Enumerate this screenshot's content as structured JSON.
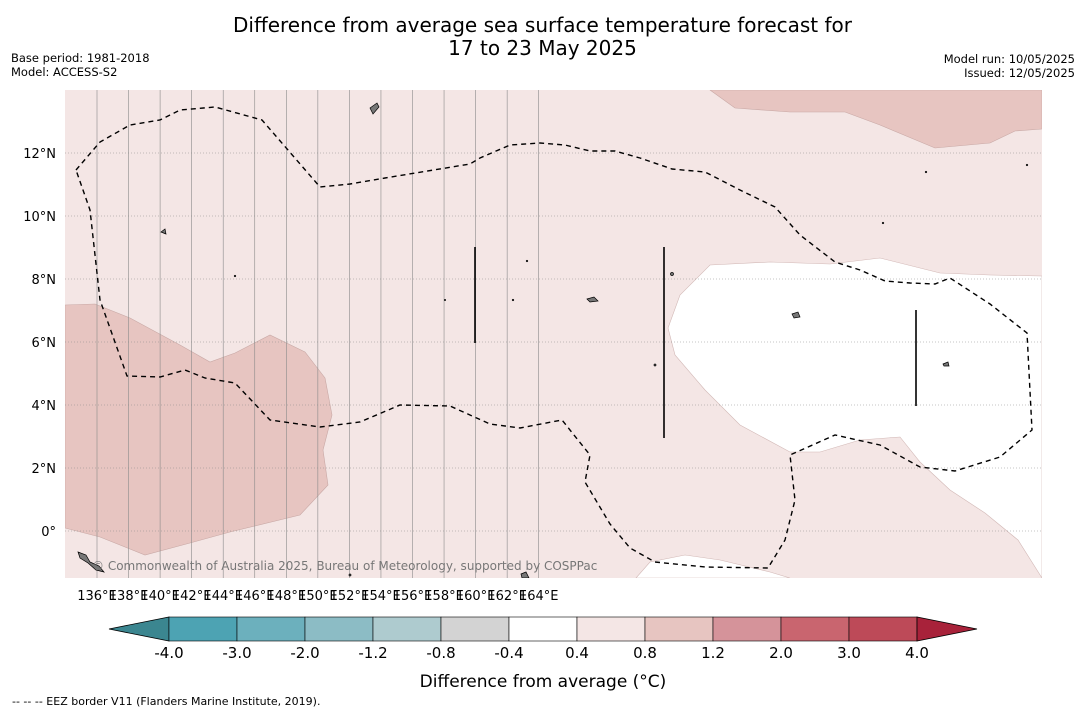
{
  "title_line1": "Difference from average sea surface temperature forecast for",
  "title_line2": "17 to 23 May 2025",
  "base_period": "Base period: 1981-2018",
  "model": "Model: ACCESS-S2",
  "model_run": "Model run: 10/05/2025",
  "issued": "Issued: 12/05/2025",
  "copyright": "© Commonwealth of Australia 2025, Bureau of Meteorology, supported by COSPPac",
  "x_ticks": [
    "136°E",
    "138°E",
    "140°E",
    "142°E",
    "144°E",
    "146°E",
    "148°E",
    "150°E",
    "152°E",
    "154°E",
    "156°E",
    "158°E",
    "160°E",
    "162°E",
    "164°E"
  ],
  "y_ticks": [
    "12°N",
    "10°N",
    "8°N",
    "6°N",
    "4°N",
    "2°N",
    "0°"
  ],
  "colorbar": {
    "label": "Difference from average (°C)",
    "ticks": [
      "-4.0",
      "-3.0",
      "-2.0",
      "-1.2",
      "-0.8",
      "-0.4",
      "0.4",
      "0.8",
      "1.2",
      "2.0",
      "3.0",
      "4.0"
    ],
    "colors": [
      "#4da3b3",
      "#6cb0bd",
      "#8cbcc5",
      "#aecbcf",
      "#d3d3d3",
      "#ffffff",
      "#f4e6e5",
      "#e7c5c1",
      "#d5939a",
      "#c9656f",
      "#bd4a58"
    ],
    "under_color": "#3b8690",
    "over_color": "#a8223a"
  },
  "footnote": "--  --  -- EEZ border V11 (Flanders Marine Institute, 2019).",
  "colors": {
    "background_anomaly": "#f4e6e5",
    "warm_anomaly": "#e7c5c1",
    "neutral": "#ffffff",
    "eez_border": "#000000"
  }
}
